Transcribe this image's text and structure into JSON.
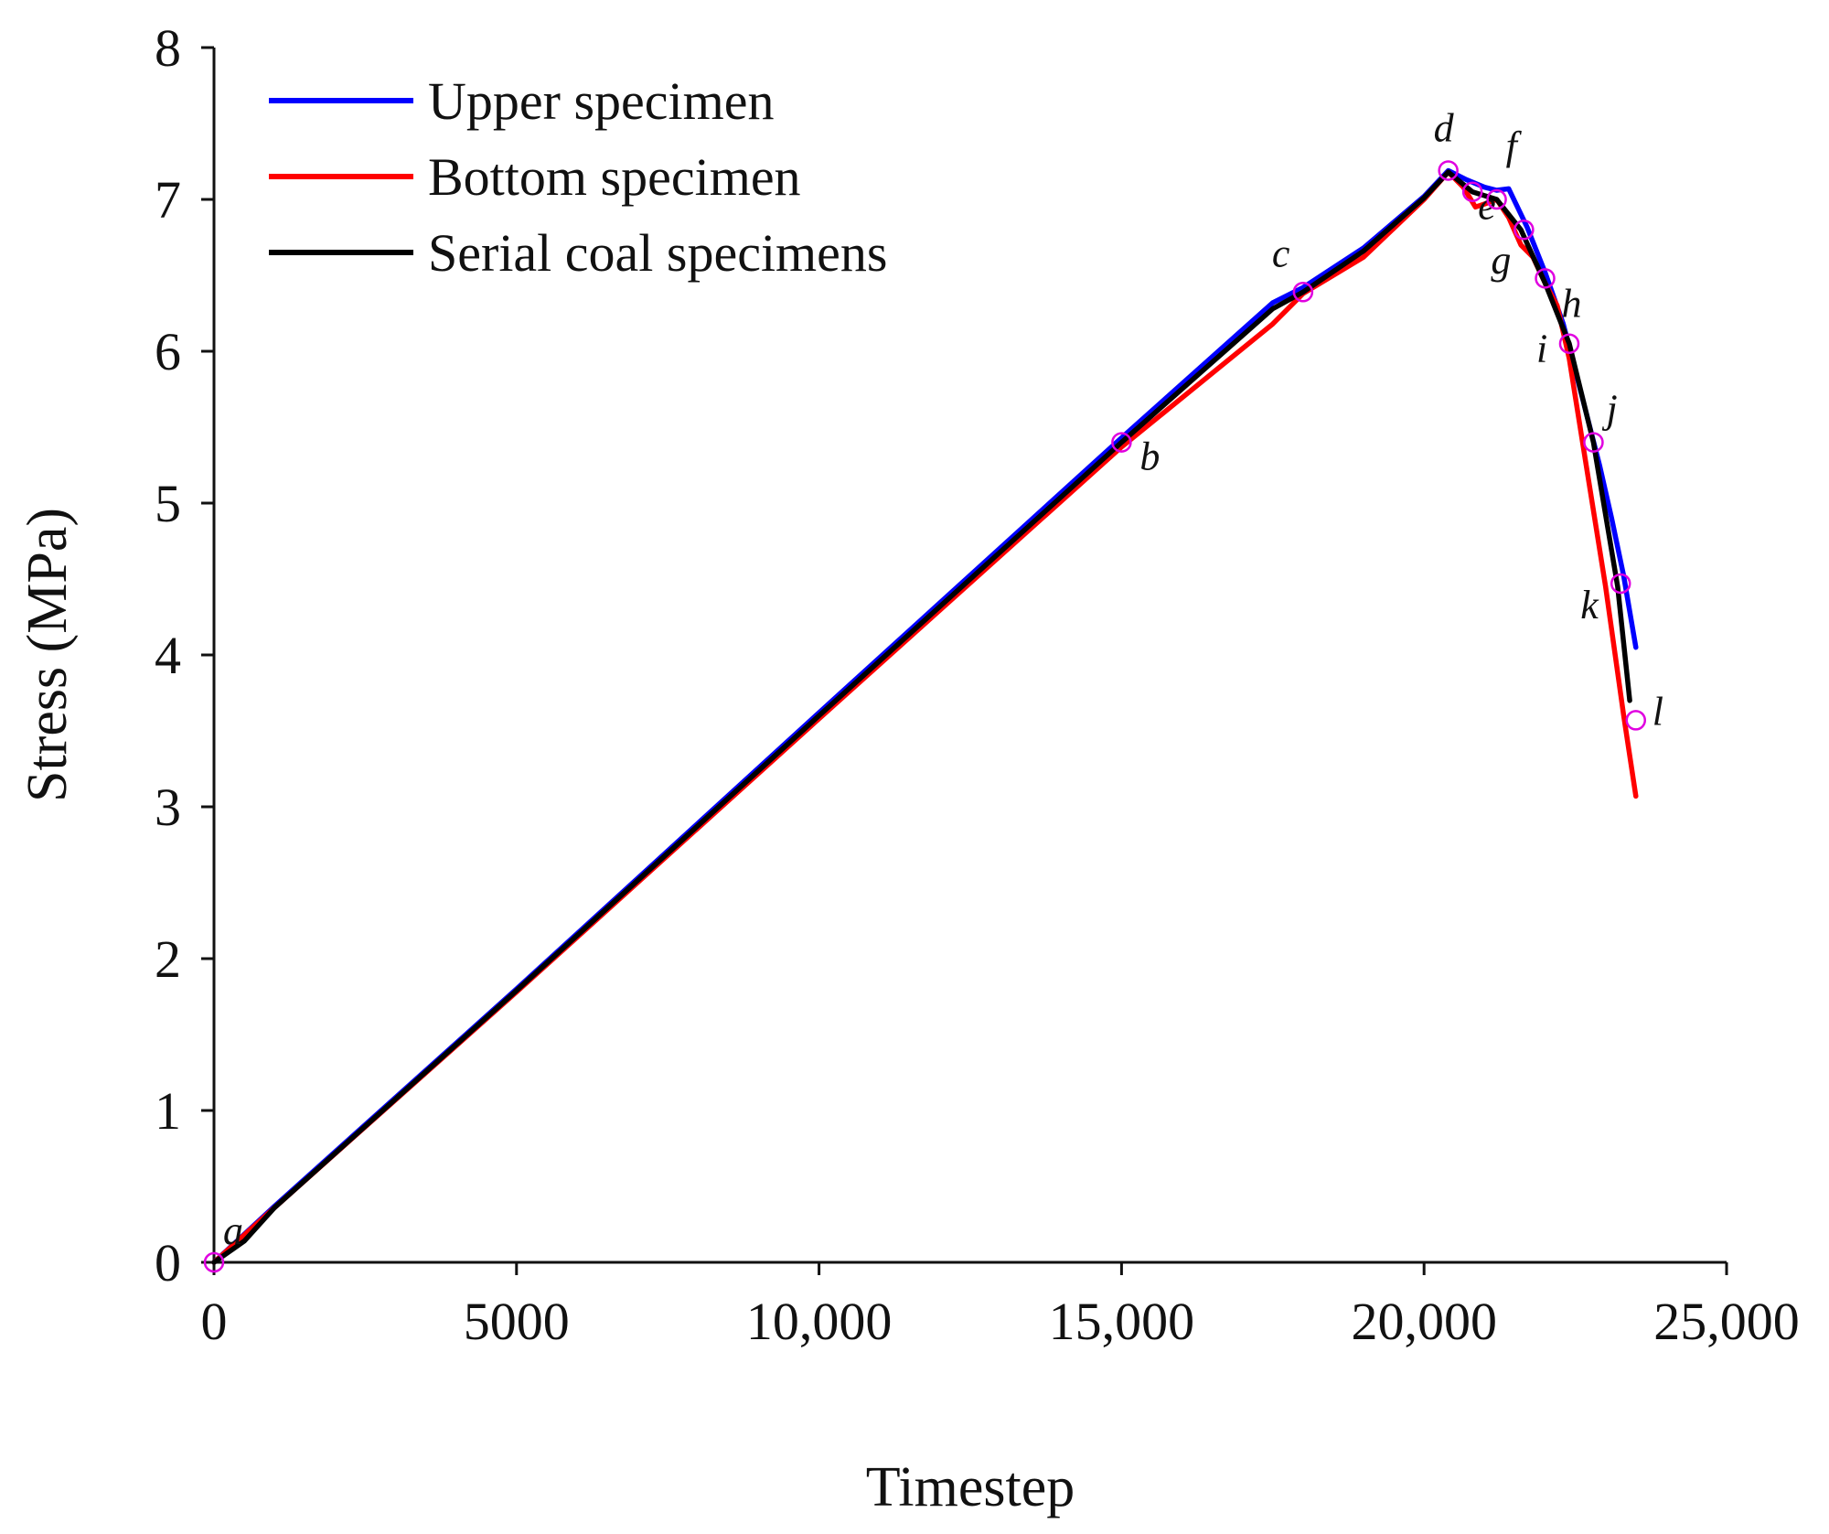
{
  "chart_data": {
    "type": "line",
    "title": "",
    "xlabel": "Timestep",
    "ylabel": "Stress (MPa)",
    "xlim": [
      0,
      25000
    ],
    "ylim": [
      0,
      8
    ],
    "xticks": [
      0,
      5000,
      10000,
      15000,
      20000,
      25000
    ],
    "xtick_labels": [
      "0",
      "5000",
      "10,000",
      "15,000",
      "20,000",
      "25,000"
    ],
    "yticks": [
      0,
      1,
      2,
      3,
      4,
      5,
      6,
      7,
      8
    ],
    "ytick_labels": [
      "0",
      "1",
      "2",
      "3",
      "4",
      "5",
      "6",
      "7",
      "8"
    ],
    "grid": false,
    "legend_position": "top-left",
    "series": [
      {
        "name": "Upper specimen",
        "color": "#0000ff",
        "x": [
          0,
          1000,
          5000,
          10000,
          15000,
          17500,
          18000,
          19000,
          20000,
          20400,
          20700,
          21000,
          21200,
          21400,
          21700,
          22000,
          22300,
          22600,
          22900,
          23100,
          23300,
          23500
        ],
        "y": [
          0,
          0.37,
          1.8,
          3.62,
          5.43,
          6.32,
          6.42,
          6.68,
          7.02,
          7.19,
          7.13,
          7.08,
          7.06,
          7.07,
          6.82,
          6.52,
          6.18,
          5.72,
          5.25,
          4.9,
          4.52,
          4.05
        ]
      },
      {
        "name": "Bottom specimen",
        "color": "#ff0000",
        "x": [
          0,
          1000,
          5000,
          10000,
          15000,
          17500,
          18000,
          19000,
          20000,
          20400,
          20650,
          20850,
          21000,
          21200,
          21400,
          21600,
          21800,
          22000,
          22200,
          22400,
          22700,
          23000,
          23300,
          23500
        ],
        "y": [
          0,
          0.36,
          1.78,
          3.58,
          5.37,
          6.18,
          6.38,
          6.62,
          7.0,
          7.18,
          7.08,
          6.95,
          6.97,
          7.0,
          6.88,
          6.7,
          6.62,
          6.45,
          6.3,
          5.95,
          5.2,
          4.45,
          3.6,
          3.07
        ]
      },
      {
        "name": "Serial coal specimens",
        "color": "#000000",
        "x": [
          0,
          500,
          1000,
          5000,
          10000,
          15000,
          17500,
          18000,
          19000,
          20000,
          20400,
          20800,
          21200,
          21600,
          22000,
          22400,
          22800,
          23200,
          23400
        ],
        "y": [
          0,
          0.14,
          0.36,
          1.79,
          3.6,
          5.4,
          6.28,
          6.39,
          6.66,
          7.01,
          7.18,
          7.05,
          7.0,
          6.8,
          6.45,
          6.05,
          5.4,
          4.45,
          3.7
        ]
      }
    ],
    "annotations": [
      {
        "label": "a",
        "x": 0,
        "y": 0
      },
      {
        "label": "b",
        "x": 15000,
        "y": 5.4
      },
      {
        "label": "c",
        "x": 18000,
        "y": 6.39
      },
      {
        "label": "d",
        "x": 20400,
        "y": 7.19
      },
      {
        "label": "e",
        "x": 20800,
        "y": 7.05
      },
      {
        "label": "f",
        "x": 21200,
        "y": 7.0
      },
      {
        "label": "g",
        "x": 21650,
        "y": 6.8
      },
      {
        "label": "h",
        "x": 22000,
        "y": 6.48
      },
      {
        "label": "i",
        "x": 22400,
        "y": 6.05
      },
      {
        "label": "j",
        "x": 22800,
        "y": 5.4
      },
      {
        "label": "k",
        "x": 23250,
        "y": 4.47
      },
      {
        "label": "l",
        "x": 23500,
        "y": 3.57
      }
    ],
    "marker_color": "#e000e0"
  }
}
